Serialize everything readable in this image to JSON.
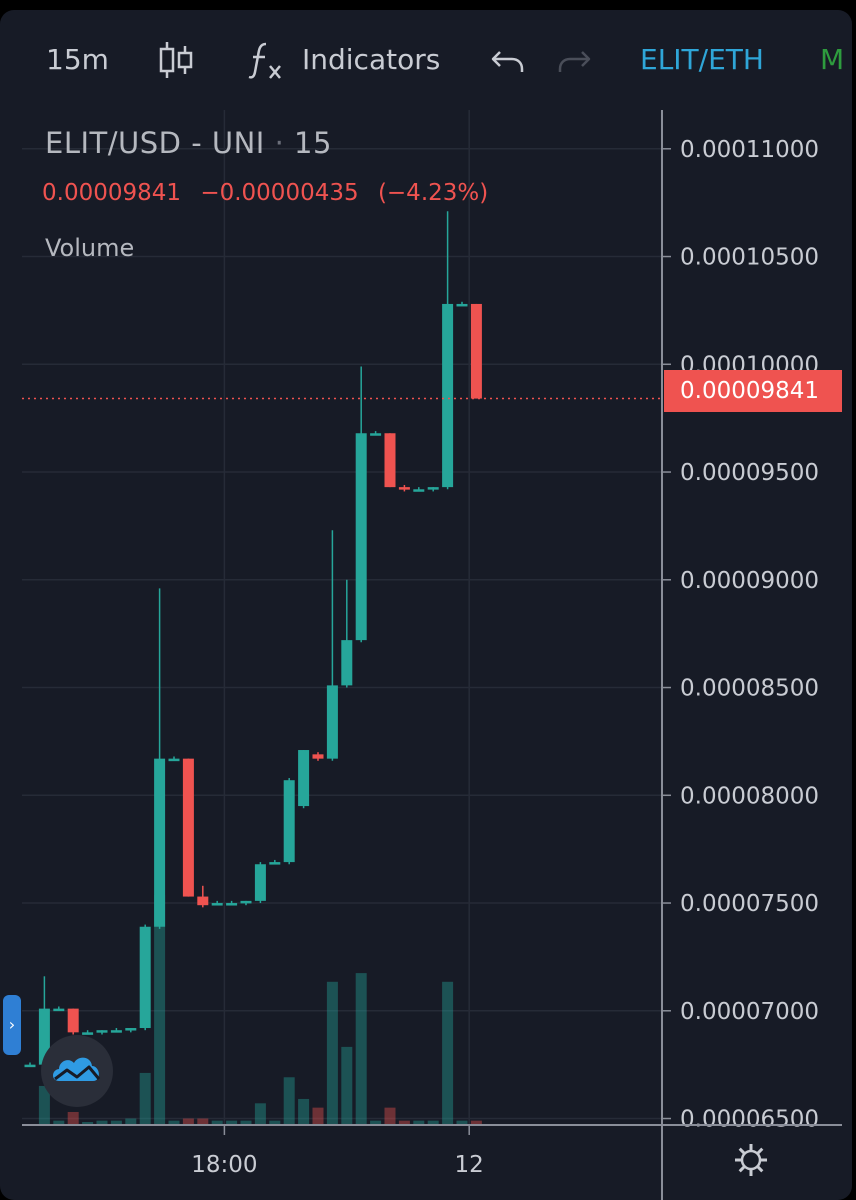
{
  "toolbar": {
    "interval": "15m",
    "candles_icon": "candlestick-icon",
    "fx_icon": "fx-icon",
    "indicators_label": "Indicators",
    "undo_icon": "undo-icon",
    "redo_icon": "redo-icon",
    "symbol_link": "ELIT/ETH",
    "cut_item": "M"
  },
  "legend": {
    "title": "ELIT/USD - UNI",
    "dot": "·",
    "interval": "15",
    "last": "0.00009841",
    "change": "−0.00000435",
    "change_pct": "(−4.23%)",
    "volume_label": "Volume"
  },
  "price_tag": "0.00009841",
  "colors": {
    "up": "#26a69a",
    "down": "#ef5350",
    "background": "#171b26",
    "grid": "#262b37"
  },
  "chart_data": {
    "type": "candlestick",
    "y_axis_ticks": [
      "0.00011000",
      "0.00010500",
      "0.00010000",
      "0.00009500",
      "0.00009000",
      "0.00008500",
      "0.00008000",
      "0.00007500",
      "0.00007000",
      "0.00006500"
    ],
    "ylim": [
      6.47e-05,
      0.0001118
    ],
    "x_tick_labels": [
      "18:00",
      "12"
    ],
    "x_tick_index": [
      13.5,
      30.5
    ],
    "last_price_line": 9.841e-05,
    "candles": [
      {
        "o": 6.75e-05,
        "h": 6.76e-05,
        "l": 6.74e-05,
        "c": 6.75e-05,
        "v": 0
      },
      {
        "o": 6.75e-05,
        "h": 7.16e-05,
        "l": 6.74e-05,
        "c": 7.01e-05,
        "v": 0.9
      },
      {
        "o": 7.01e-05,
        "h": 7.02e-05,
        "l": 7e-05,
        "c": 7.01e-05,
        "v": 0.1
      },
      {
        "o": 7.01e-05,
        "h": 7.01e-05,
        "l": 6.89e-05,
        "c": 6.9e-05,
        "v": 0.3
      },
      {
        "o": 6.9e-05,
        "h": 6.91e-05,
        "l": 6.89e-05,
        "c": 6.9e-05,
        "v": 0.05
      },
      {
        "o": 6.9e-05,
        "h": 6.91e-05,
        "l": 6.89e-05,
        "c": 6.91e-05,
        "v": 0.1
      },
      {
        "o": 6.91e-05,
        "h": 6.92e-05,
        "l": 6.9e-05,
        "c": 6.91e-05,
        "v": 0.1
      },
      {
        "o": 6.91e-05,
        "h": 6.92e-05,
        "l": 6.9e-05,
        "c": 6.92e-05,
        "v": 0.15
      },
      {
        "o": 6.92e-05,
        "h": 7.4e-05,
        "l": 6.91e-05,
        "c": 7.39e-05,
        "v": 1.2
      },
      {
        "o": 7.39e-05,
        "h": 8.96e-05,
        "l": 7.38e-05,
        "c": 8.17e-05,
        "v": 5.3
      },
      {
        "o": 8.17e-05,
        "h": 8.18e-05,
        "l": 8.16e-05,
        "c": 8.17e-05,
        "v": 0.1
      },
      {
        "o": 8.17e-05,
        "h": 8.17e-05,
        "l": 7.53e-05,
        "c": 7.53e-05,
        "v": 0.15
      },
      {
        "o": 7.53e-05,
        "h": 7.58e-05,
        "l": 7.48e-05,
        "c": 7.49e-05,
        "v": 0.15
      },
      {
        "o": 7.5e-05,
        "h": 7.51e-05,
        "l": 7.49e-05,
        "c": 7.5e-05,
        "v": 0.1
      },
      {
        "o": 7.5e-05,
        "h": 7.51e-05,
        "l": 7.49e-05,
        "c": 7.5e-05,
        "v": 0.1
      },
      {
        "o": 7.5e-05,
        "h": 7.51e-05,
        "l": 7.49e-05,
        "c": 7.51e-05,
        "v": 0.1
      },
      {
        "o": 7.51e-05,
        "h": 7.69e-05,
        "l": 7.5e-05,
        "c": 7.68e-05,
        "v": 0.5
      },
      {
        "o": 7.68e-05,
        "h": 7.7e-05,
        "l": 7.68e-05,
        "c": 7.69e-05,
        "v": 0.1
      },
      {
        "o": 7.69e-05,
        "h": 8.08e-05,
        "l": 7.68e-05,
        "c": 8.07e-05,
        "v": 1.1
      },
      {
        "o": 7.95e-05,
        "h": 8.21e-05,
        "l": 7.94e-05,
        "c": 8.21e-05,
        "v": 0.6
      },
      {
        "o": 8.19e-05,
        "h": 8.2e-05,
        "l": 8.16e-05,
        "c": 8.17e-05,
        "v": 0.4
      },
      {
        "o": 8.17e-05,
        "h": 9.23e-05,
        "l": 8.16e-05,
        "c": 8.51e-05,
        "v": 3.3
      },
      {
        "o": 8.51e-05,
        "h": 9e-05,
        "l": 8.5e-05,
        "c": 8.72e-05,
        "v": 1.8
      },
      {
        "o": 8.72e-05,
        "h": 9.99e-05,
        "l": 8.71e-05,
        "c": 9.68e-05,
        "v": 3.5
      },
      {
        "o": 9.68e-05,
        "h": 9.69e-05,
        "l": 9.67e-05,
        "c": 9.68e-05,
        "v": 0.1
      },
      {
        "o": 9.68e-05,
        "h": 9.68e-05,
        "l": 9.43e-05,
        "c": 9.43e-05,
        "v": 0.4
      },
      {
        "o": 9.43e-05,
        "h": 9.44e-05,
        "l": 9.41e-05,
        "c": 9.42e-05,
        "v": 0.1
      },
      {
        "o": 9.42e-05,
        "h": 9.43e-05,
        "l": 9.41e-05,
        "c": 9.42e-05,
        "v": 0.1
      },
      {
        "o": 9.42e-05,
        "h": 9.43e-05,
        "l": 9.41e-05,
        "c": 9.43e-05,
        "v": 0.1
      },
      {
        "o": 9.43e-05,
        "h": 0.0001071,
        "l": 9.42e-05,
        "c": 0.0001028,
        "v": 3.3
      },
      {
        "o": 0.0001028,
        "h": 0.0001029,
        "l": 0.0001027,
        "c": 0.0001028,
        "v": 0.1
      },
      {
        "o": 0.0001028,
        "h": 0.0001028,
        "l": 9.841e-05,
        "c": 9.841e-05,
        "v": 0.1
      }
    ]
  }
}
